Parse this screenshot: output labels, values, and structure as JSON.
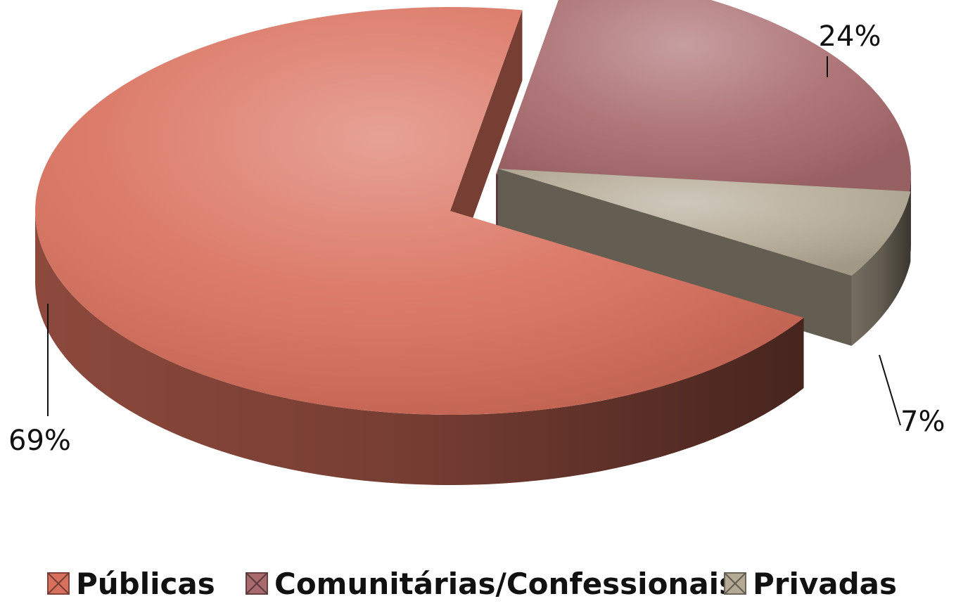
{
  "chart_data": {
    "type": "pie",
    "variant": "3d-exploded",
    "categories": [
      "Públicas",
      "Comunitárias/Confessionais",
      "Privadas"
    ],
    "values": [
      69,
      24,
      7
    ],
    "data_labels": [
      "69%",
      "24%",
      "7%"
    ],
    "colors": [
      "#d9705d",
      "#a86a6d",
      "#b4a995"
    ],
    "legend": {
      "position": "bottom",
      "entries": [
        "Públicas",
        "Comunitárias/Confessionais",
        "Privadas"
      ]
    },
    "title": ""
  }
}
